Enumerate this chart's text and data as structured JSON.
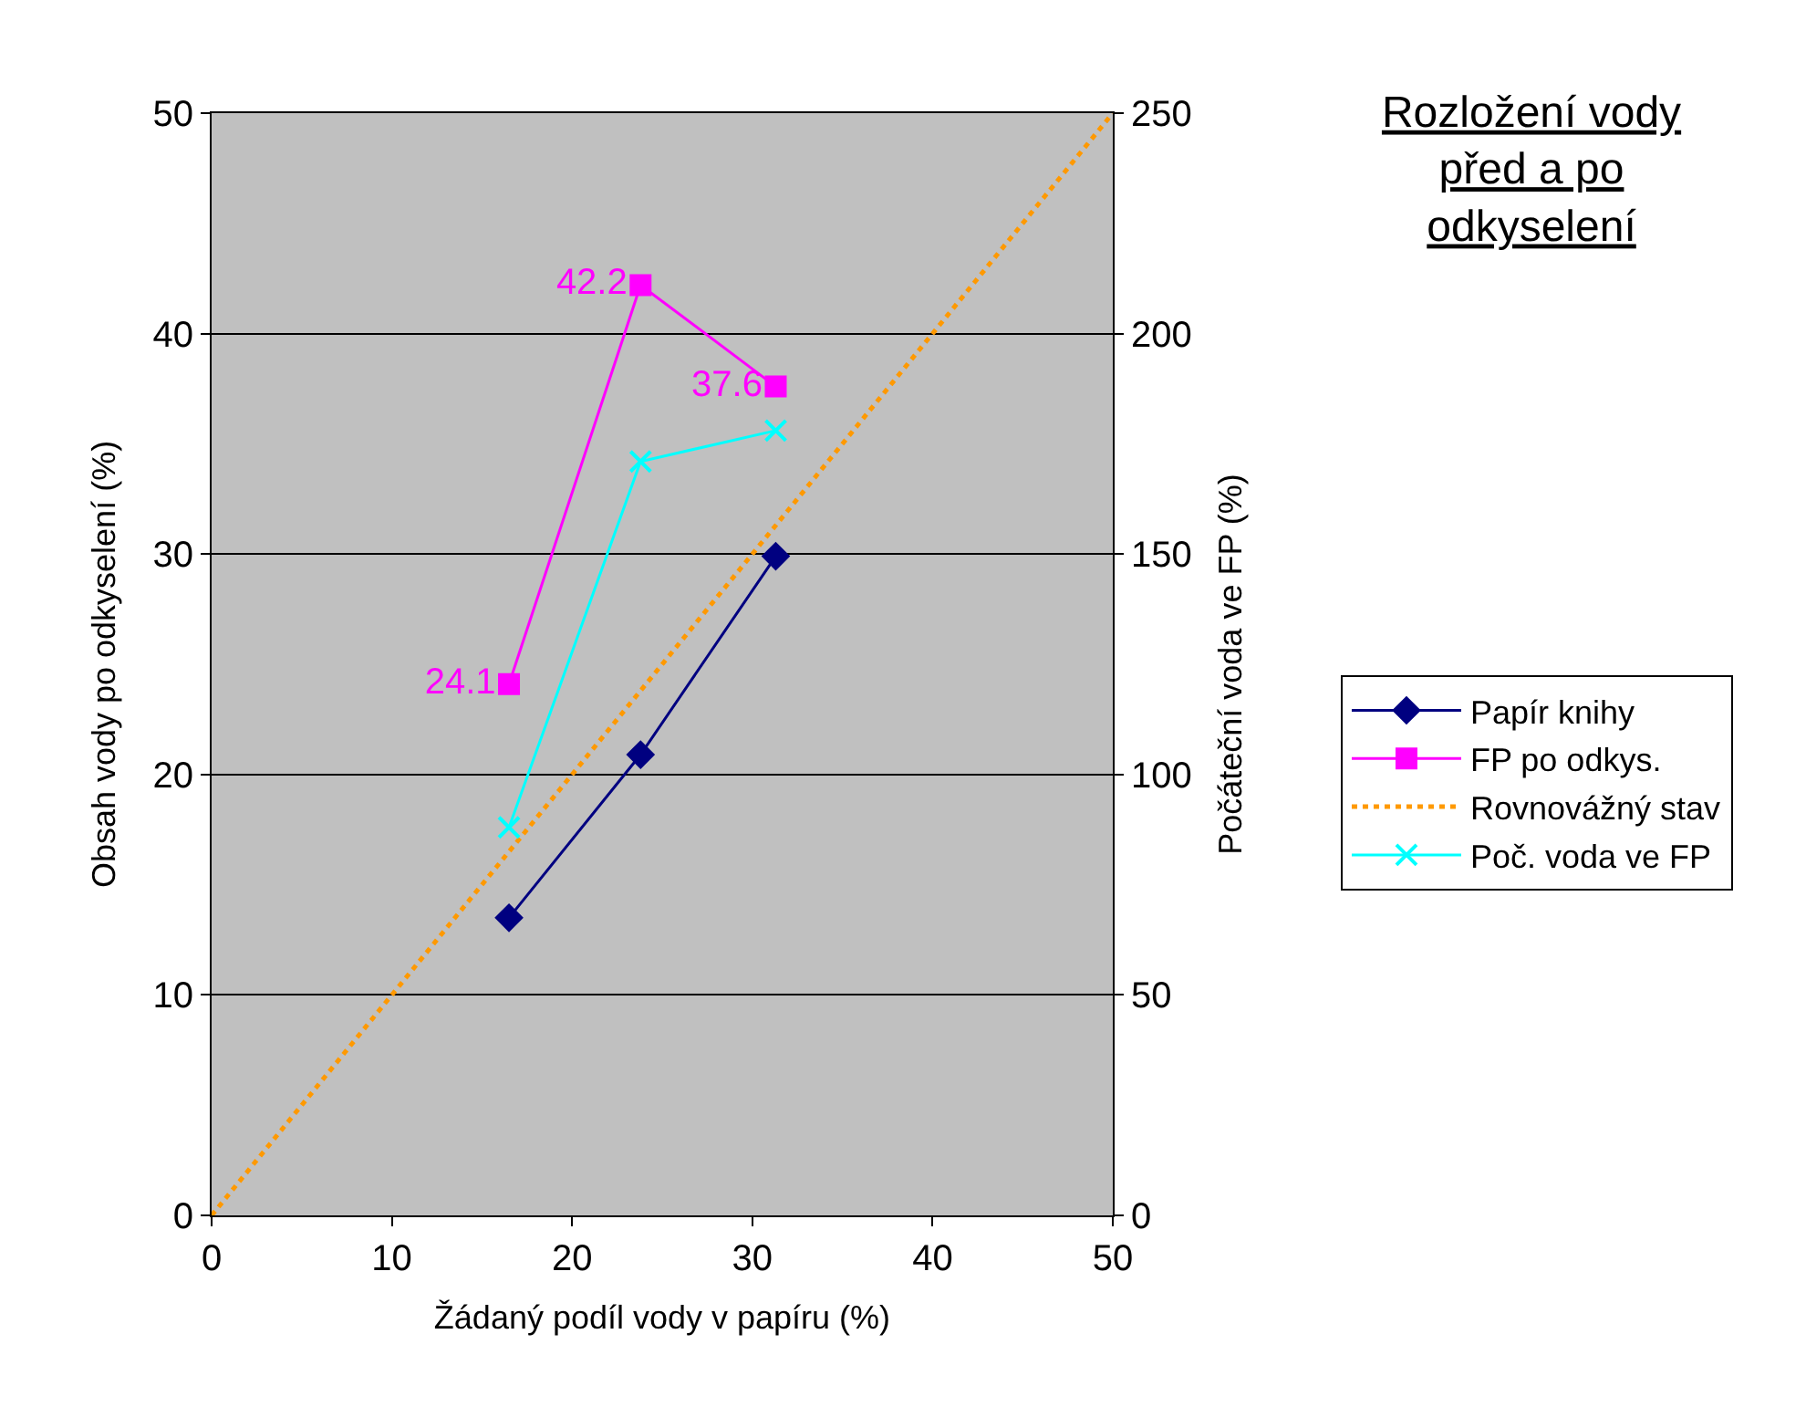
{
  "chart_data": {
    "type": "line",
    "title": "Rozložení vody\npřed a po\nodkyselení",
    "xlabel": "Žádaný podíl vody v papíru (%)",
    "ylabel": "Obsah vody po odkyselení (%)",
    "y2label": "Počáteční voda ve FP (%)",
    "xlim": [
      0,
      50
    ],
    "xticks": [
      0,
      10,
      20,
      30,
      40,
      50
    ],
    "ylim": [
      0,
      50
    ],
    "yticks": [
      0,
      10,
      20,
      30,
      40,
      50
    ],
    "y2lim": [
      0,
      250
    ],
    "y2ticks": [
      0,
      50,
      100,
      150,
      200,
      250
    ],
    "grid": "y",
    "legend": "right",
    "series": [
      {
        "name": "Papír knihy",
        "color": "#000080",
        "x": [
          16.5,
          23.8,
          31.3
        ],
        "values": [
          13.5,
          20.9,
          29.9
        ],
        "marker": "diamond",
        "line_style": "solid"
      },
      {
        "name": "FP po odkys.",
        "color": "#ff00ff",
        "x": [
          16.5,
          23.8,
          31.3
        ],
        "values": [
          24.1,
          42.2,
          37.6
        ],
        "marker": "square",
        "line_style": "solid",
        "value_labels": [
          "24.1",
          "42.2",
          "37.6"
        ]
      },
      {
        "name": "Rovnovážný stav",
        "color": "#ff9900",
        "x": [
          0,
          50
        ],
        "values": [
          0,
          50
        ],
        "marker": "none",
        "line_style": "dotted"
      },
      {
        "name": "Poč. voda ve FP",
        "color": "#00ffff",
        "x": [
          16.5,
          23.8,
          31.3
        ],
        "values": [
          88,
          171,
          178
        ],
        "marker": "cross",
        "line_style": "solid",
        "axis": "y2"
      }
    ]
  }
}
